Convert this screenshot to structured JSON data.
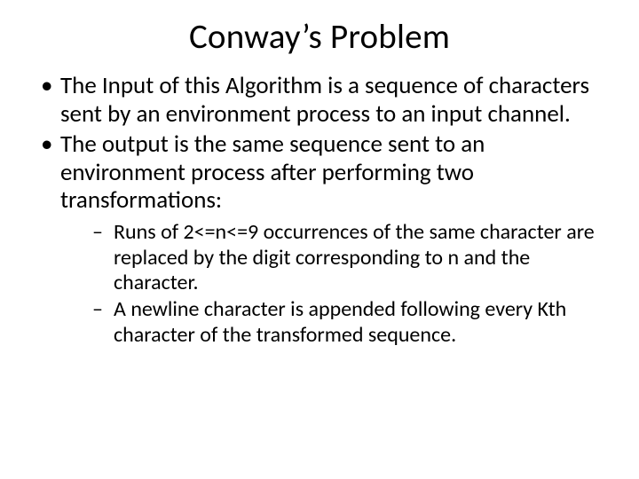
{
  "title": {
    "text": "Conway’s Problem",
    "fontsize": 39,
    "color": "#000000",
    "margin_bottom": 16
  },
  "body": {
    "fontsize_level1": 27,
    "fontsize_level2": 24,
    "line_height": 1.18,
    "color": "#000000",
    "level1_items": [
      "The Input of this Algorithm is a sequence of characters sent by an environment process to an input channel.",
      "The output is the same sequence sent to an environment process after performing two transformations:"
    ],
    "level2_items": [
      "Runs of 2<=n<=9 occurrences of the same character are replaced by the digit corresponding to n and the character.",
      "A newline character is appended following every Kth character of the transformed sequence."
    ],
    "level1_spacing_between": 2,
    "level2_margin_top": 6,
    "level2_left_indent": 32,
    "level2_item_spacing": 2
  },
  "background_color": "#ffffff"
}
